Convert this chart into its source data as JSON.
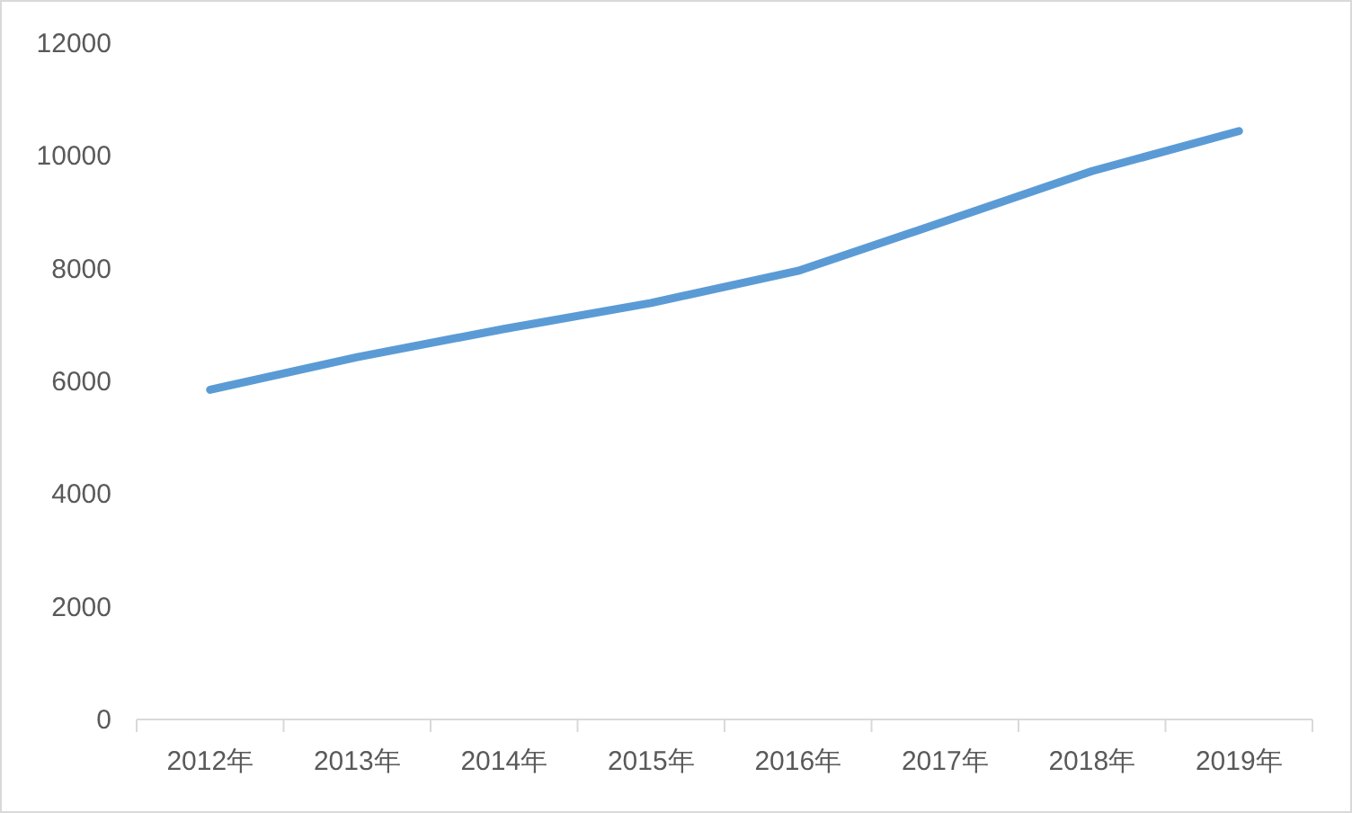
{
  "chart_data": {
    "type": "line",
    "categories": [
      "2012年",
      "2013年",
      "2014年",
      "2015年",
      "2016年",
      "2017年",
      "2018年",
      "2019年"
    ],
    "series": [
      {
        "color": "#5b9bd5",
        "values": [
          5850,
          6430,
          6930,
          7390,
          7960,
          8840,
          9730,
          10440
        ]
      }
    ],
    "ylim": [
      0,
      12000
    ],
    "yticks": [
      0,
      2000,
      4000,
      6000,
      8000,
      10000,
      12000
    ],
    "grid": false,
    "marker": "none",
    "line_style": "solid"
  }
}
